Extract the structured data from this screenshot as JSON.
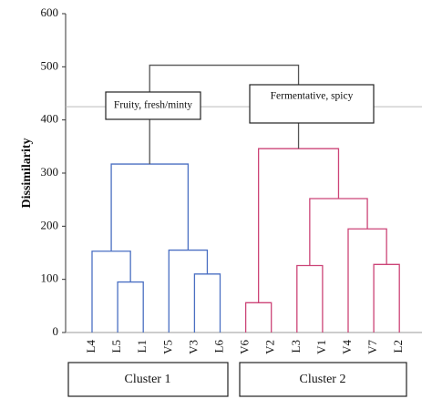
{
  "chart_data": {
    "type": "dendrogram",
    "y_label": "Dissimilarity",
    "ylim": [
      0,
      600
    ],
    "yticks": [
      0,
      100,
      200,
      300,
      400,
      500,
      600
    ],
    "cut_height": 425,
    "cut_color": "#bbbbbb",
    "link_color": "#555555",
    "branch_labels": [
      "Fruity, fresh/minty",
      "Fermentative, spicy"
    ],
    "cluster_labels": [
      "Cluster 1",
      "Cluster 2"
    ],
    "tree": {
      "height": 503,
      "children": [
        {
          "height": 317,
          "color": "#4a6fc2",
          "children": [
            {
              "height": 153,
              "children": [
                {
                  "label": "L4"
                },
                {
                  "height": 95,
                  "children": [
                    {
                      "label": "L5"
                    },
                    {
                      "label": "L1"
                    }
                  ]
                }
              ]
            },
            {
              "height": 155,
              "children": [
                {
                  "label": "V5"
                },
                {
                  "height": 110,
                  "children": [
                    {
                      "label": "V3"
                    },
                    {
                      "label": "L6"
                    }
                  ]
                }
              ]
            }
          ]
        },
        {
          "height": 346,
          "color": "#cc4477",
          "children": [
            {
              "height": 56,
              "children": [
                {
                  "label": "V6"
                },
                {
                  "label": "V2"
                }
              ]
            },
            {
              "height": 252,
              "children": [
                {
                  "height": 126,
                  "children": [
                    {
                      "label": "L3"
                    },
                    {
                      "label": "V1"
                    }
                  ]
                },
                {
                  "height": 195,
                  "children": [
                    {
                      "label": "V4"
                    },
                    {
                      "height": 128,
                      "children": [
                        {
                          "label": "V7"
                        },
                        {
                          "label": "L2"
                        }
                      ]
                    }
                  ]
                }
              ]
            }
          ]
        }
      ]
    }
  }
}
